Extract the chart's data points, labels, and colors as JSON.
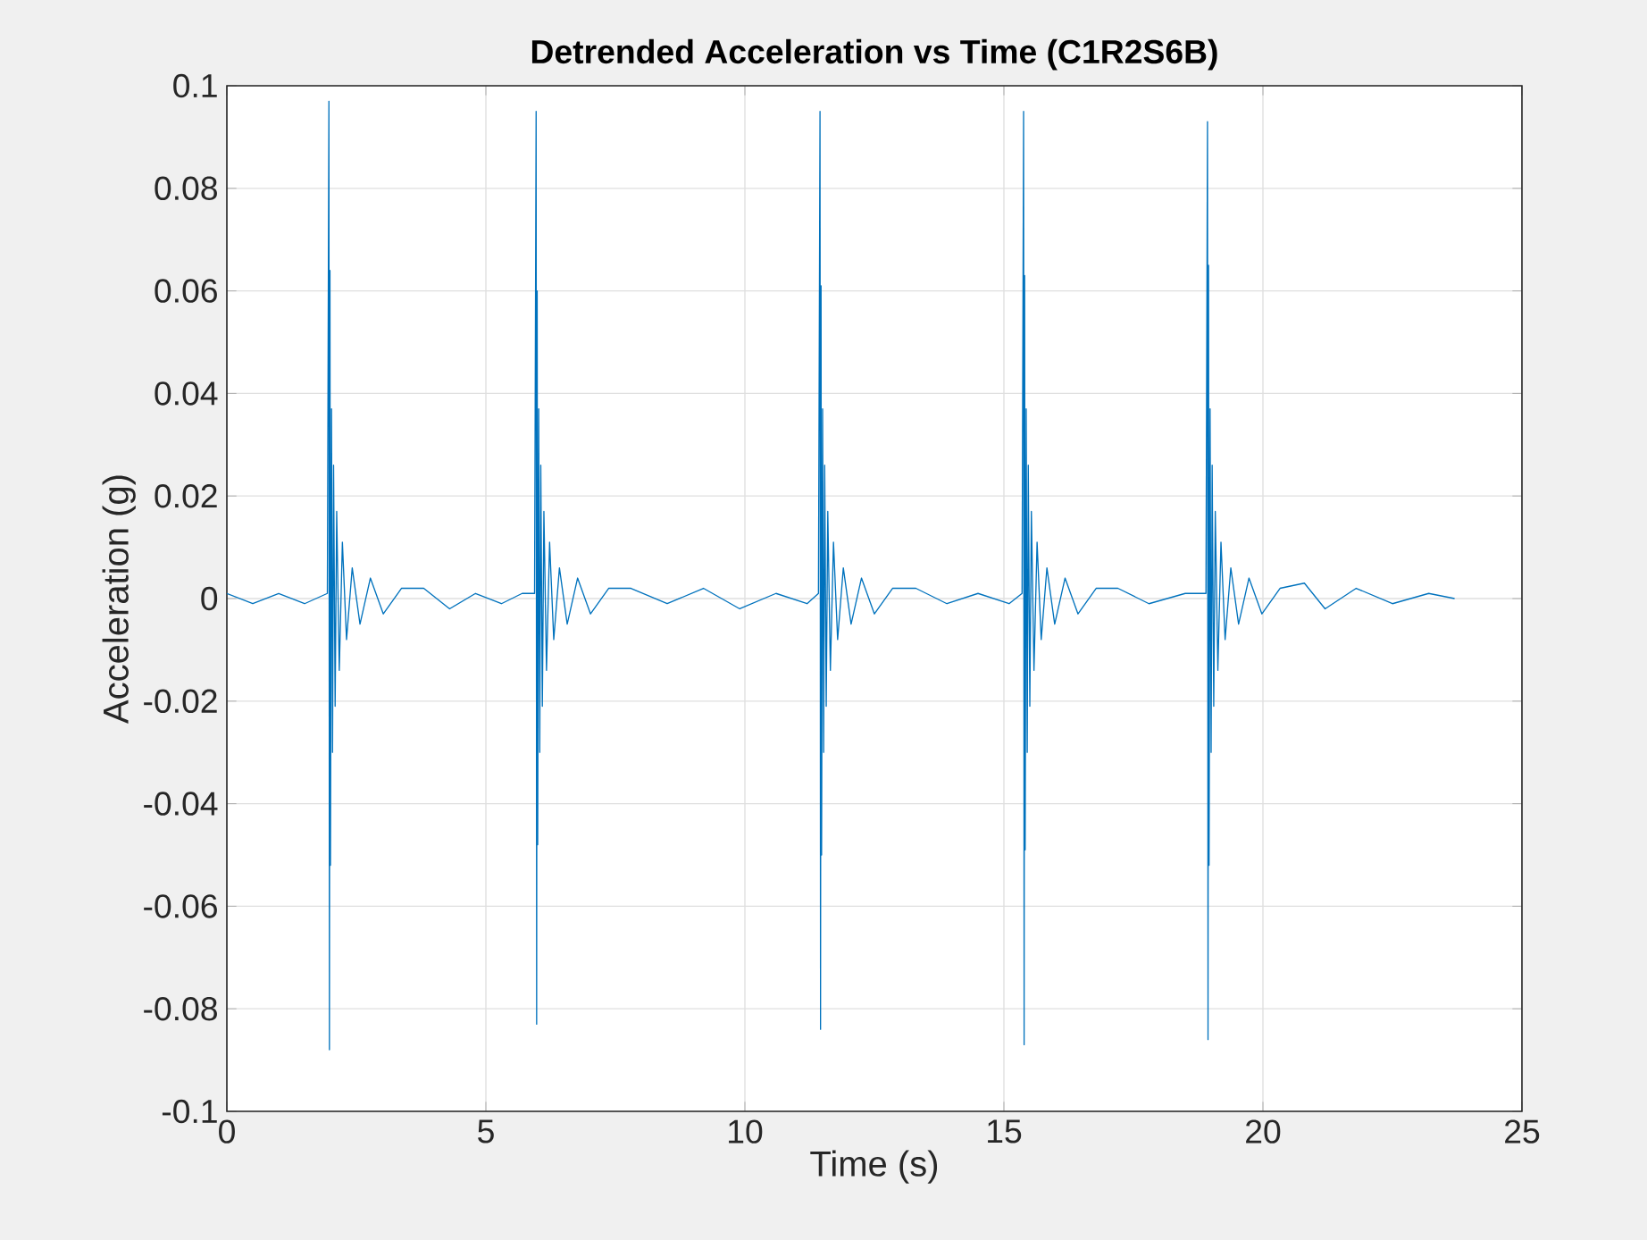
{
  "chart_data": {
    "type": "line",
    "title": "Detrended Acceleration vs Time (C1R2S6B)",
    "xlabel": "Time (s)",
    "ylabel": "Acceleration (g)",
    "xlim": [
      0,
      25
    ],
    "xticks": [
      0,
      5,
      10,
      15,
      20,
      25
    ],
    "ylim": [
      -0.1,
      0.1
    ],
    "yticks": [
      -0.1,
      -0.08,
      -0.06,
      -0.04,
      -0.02,
      0,
      0.02,
      0.04,
      0.06,
      0.08,
      0.1
    ],
    "grid": true,
    "marker": "none",
    "line_style": "solid",
    "series": [
      {
        "color": "#0072bd",
        "x": [
          0,
          0.5,
          1.0,
          1.5,
          1.94,
          1.97,
          1.98,
          1.99,
          2.0,
          2.02,
          2.04,
          2.06,
          2.09,
          2.12,
          2.17,
          2.23,
          2.31,
          2.42,
          2.57,
          2.77,
          3.02,
          3.37,
          3.8,
          4.3,
          4.8,
          5.3,
          5.7,
          5.94,
          5.97,
          5.98,
          5.99,
          6.0,
          6.02,
          6.04,
          6.06,
          6.09,
          6.12,
          6.17,
          6.23,
          6.31,
          6.42,
          6.57,
          6.77,
          7.02,
          7.37,
          7.8,
          8.5,
          9.2,
          9.9,
          10.6,
          11.2,
          11.42,
          11.45,
          11.46,
          11.47,
          11.48,
          11.5,
          11.52,
          11.54,
          11.57,
          11.6,
          11.65,
          11.71,
          11.79,
          11.9,
          12.05,
          12.25,
          12.5,
          12.85,
          13.3,
          13.9,
          14.5,
          15.1,
          15.35,
          15.38,
          15.39,
          15.4,
          15.41,
          15.43,
          15.45,
          15.47,
          15.5,
          15.53,
          15.58,
          15.64,
          15.72,
          15.83,
          15.98,
          16.18,
          16.43,
          16.78,
          17.2,
          17.8,
          18.5,
          18.9,
          18.93,
          18.94,
          18.95,
          18.96,
          18.98,
          19.0,
          19.02,
          19.05,
          19.08,
          19.13,
          19.19,
          19.27,
          19.38,
          19.53,
          19.73,
          19.98,
          20.33,
          20.8,
          21.2,
          21.8,
          22.5,
          23.2,
          23.7
        ],
        "values": [
          0.001,
          -0.001,
          0.001,
          -0.001,
          0.001,
          0.097,
          -0.088,
          0.064,
          -0.052,
          0.037,
          -0.03,
          0.026,
          -0.021,
          0.017,
          -0.014,
          0.011,
          -0.008,
          0.006,
          -0.005,
          0.004,
          -0.003,
          0.002,
          0.002,
          -0.002,
          0.001,
          -0.001,
          0.001,
          0.001,
          0.095,
          -0.083,
          0.06,
          -0.048,
          0.037,
          -0.03,
          0.026,
          -0.021,
          0.017,
          -0.014,
          0.011,
          -0.008,
          0.006,
          -0.005,
          0.004,
          -0.003,
          0.002,
          0.002,
          -0.001,
          0.002,
          -0.002,
          0.001,
          -0.001,
          0.001,
          0.095,
          -0.084,
          0.061,
          -0.05,
          0.037,
          -0.03,
          0.026,
          -0.021,
          0.017,
          -0.014,
          0.011,
          -0.008,
          0.006,
          -0.005,
          0.004,
          -0.003,
          0.002,
          0.002,
          -0.001,
          0.001,
          -0.001,
          0.001,
          0.095,
          -0.087,
          0.063,
          -0.049,
          0.037,
          -0.03,
          0.026,
          -0.021,
          0.017,
          -0.014,
          0.011,
          -0.008,
          0.006,
          -0.005,
          0.004,
          -0.003,
          0.002,
          0.002,
          -0.001,
          0.001,
          0.001,
          0.093,
          -0.086,
          0.065,
          -0.052,
          0.037,
          -0.03,
          0.026,
          -0.021,
          0.017,
          -0.014,
          0.011,
          -0.008,
          0.006,
          -0.005,
          0.004,
          -0.003,
          0.002,
          0.003,
          -0.002,
          0.002,
          -0.001,
          0.001,
          0
        ]
      }
    ]
  }
}
